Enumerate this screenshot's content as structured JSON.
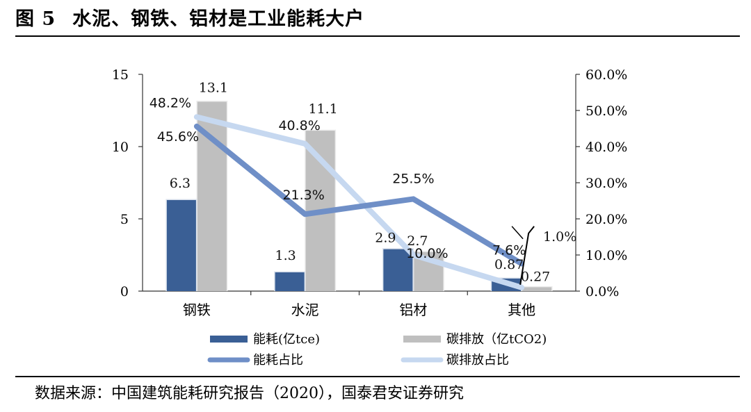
{
  "figure": {
    "label": "图 5",
    "title": "水泥、钢铁、铝材是工业能耗大户",
    "source": "数据来源：中国建筑能耗研究报告（2020），国泰君安证券研究"
  },
  "colors": {
    "energy_bar": "#3a5f95",
    "carbon_bar": "#bfbfbf",
    "energy_share_line": "#6f8fc7",
    "carbon_share_line": "#c6d8f0"
  },
  "chart_data": {
    "type": "bar",
    "categories": [
      "钢铁",
      "水泥",
      "铝材",
      "其他"
    ],
    "series": [
      {
        "name": "能耗(亿tce)",
        "kind": "bar",
        "axis": "left",
        "values": [
          6.3,
          1.3,
          2.9,
          0.87
        ]
      },
      {
        "name": "碳排放（亿tCO2)",
        "kind": "bar",
        "axis": "left",
        "values": [
          13.1,
          11.1,
          2.7,
          0.27
        ]
      },
      {
        "name": "能耗占比",
        "kind": "line",
        "axis": "right",
        "values": [
          45.6,
          21.3,
          25.5,
          7.6
        ]
      },
      {
        "name": "碳排放占比",
        "kind": "line",
        "axis": "right",
        "values": [
          48.2,
          40.8,
          10.0,
          1.0
        ]
      }
    ],
    "data_labels": {
      "energy_bar": [
        "6.3",
        "1.3",
        "2.9",
        "0.87"
      ],
      "carbon_bar": [
        "13.1",
        "11.1",
        "2.7",
        "0.27"
      ],
      "energy_share": [
        "45.6%",
        "21.3%",
        "25.5%",
        "7.6%"
      ],
      "carbon_share": [
        "48.2%",
        "40.8%",
        "10.0%",
        "1.0%"
      ]
    },
    "y_left": {
      "range": [
        0,
        15
      ],
      "ticks": [
        "0",
        "5",
        "10",
        "15"
      ]
    },
    "y_right": {
      "range": [
        0,
        60
      ],
      "ticks": [
        "0.0%",
        "10.0%",
        "20.0%",
        "30.0%",
        "40.0%",
        "50.0%",
        "60.0%"
      ]
    },
    "legend_position": "bottom",
    "grid": false
  }
}
